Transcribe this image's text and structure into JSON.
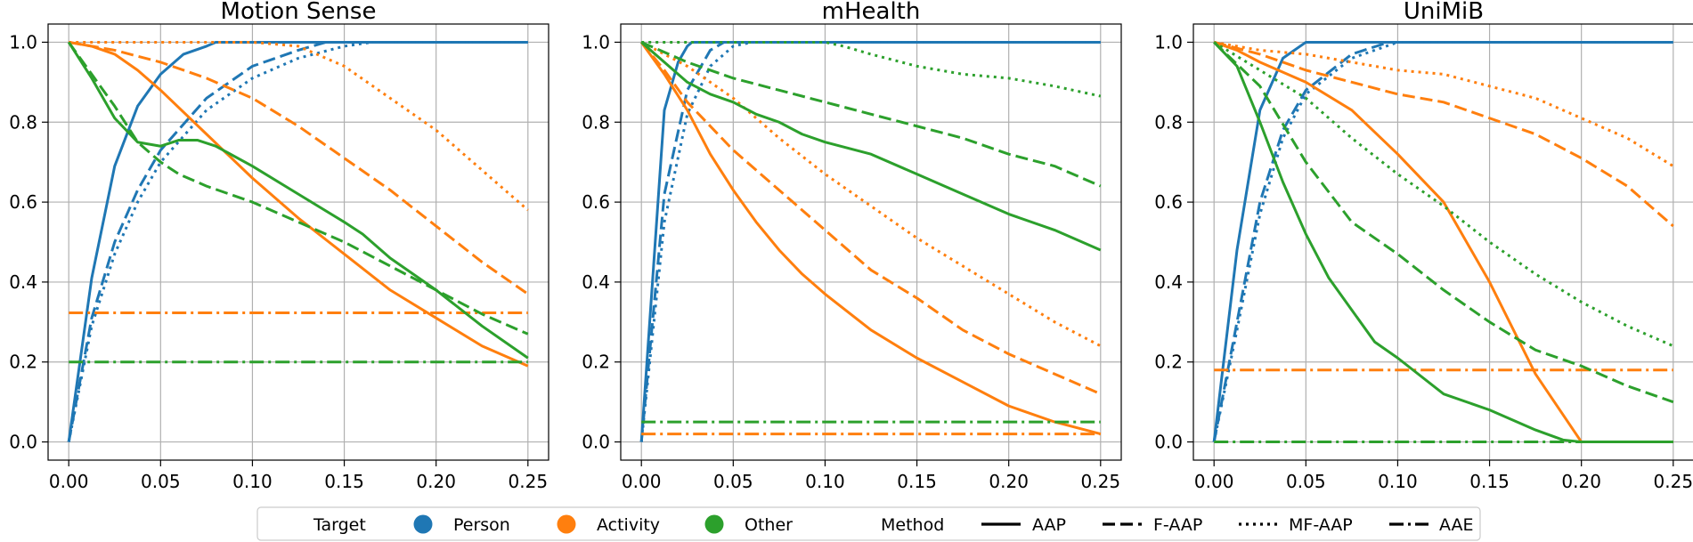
{
  "colors": {
    "person": "#1f77b4",
    "activity": "#ff7f0e",
    "other": "#2ca02c"
  },
  "chart_data": [
    {
      "type": "line",
      "title": "Motion Sense",
      "xlim": [
        0.0,
        0.25
      ],
      "ylim": [
        0.0,
        1.0
      ],
      "xticks": [
        "0.00",
        "0.05",
        "0.10",
        "0.15",
        "0.20",
        "0.25"
      ],
      "yticks": [
        "0.0",
        "0.2",
        "0.4",
        "0.6",
        "0.8",
        "1.0"
      ],
      "grid": true,
      "series": [
        {
          "target": "person",
          "method": "AAP",
          "x": [
            0,
            0.0125,
            0.025,
            0.0375,
            0.05,
            0.0625,
            0.075,
            0.08,
            0.25
          ],
          "y": [
            0,
            0.41,
            0.69,
            0.84,
            0.92,
            0.97,
            0.99,
            1.0,
            1.0
          ]
        },
        {
          "target": "person",
          "method": "F-AAP",
          "x": [
            0,
            0.0125,
            0.025,
            0.0375,
            0.05,
            0.075,
            0.1,
            0.125,
            0.14,
            0.25
          ],
          "y": [
            0,
            0.31,
            0.5,
            0.63,
            0.73,
            0.86,
            0.94,
            0.98,
            1.0,
            1.0
          ]
        },
        {
          "target": "person",
          "method": "MF-AAP",
          "x": [
            0,
            0.0125,
            0.025,
            0.0375,
            0.05,
            0.075,
            0.1,
            0.125,
            0.15,
            0.165,
            0.25
          ],
          "y": [
            0,
            0.29,
            0.47,
            0.6,
            0.7,
            0.83,
            0.91,
            0.96,
            0.99,
            1.0,
            1.0
          ]
        },
        {
          "target": "activity",
          "method": "AAP",
          "x": [
            0,
            0.0125,
            0.025,
            0.0375,
            0.05,
            0.075,
            0.1,
            0.125,
            0.15,
            0.175,
            0.2,
            0.225,
            0.25
          ],
          "y": [
            1.0,
            0.99,
            0.97,
            0.93,
            0.88,
            0.77,
            0.66,
            0.56,
            0.47,
            0.38,
            0.31,
            0.24,
            0.19
          ]
        },
        {
          "target": "activity",
          "method": "F-AAP",
          "x": [
            0,
            0.025,
            0.05,
            0.075,
            0.1,
            0.125,
            0.15,
            0.175,
            0.2,
            0.225,
            0.25
          ],
          "y": [
            1.0,
            0.98,
            0.95,
            0.91,
            0.86,
            0.79,
            0.71,
            0.63,
            0.54,
            0.45,
            0.37
          ]
        },
        {
          "target": "activity",
          "method": "MF-AAP",
          "x": [
            0,
            0.05,
            0.1,
            0.125,
            0.15,
            0.175,
            0.2,
            0.225,
            0.25
          ],
          "y": [
            1.0,
            1.0,
            1.0,
            0.99,
            0.94,
            0.86,
            0.78,
            0.68,
            0.58
          ]
        },
        {
          "target": "activity",
          "method": "AAE",
          "x": [
            0,
            0.25
          ],
          "y": [
            0.323,
            0.323
          ]
        },
        {
          "target": "other",
          "method": "AAP",
          "x": [
            0,
            0.0125,
            0.025,
            0.0375,
            0.05,
            0.06,
            0.07,
            0.08,
            0.1,
            0.125,
            0.15,
            0.16,
            0.175,
            0.2,
            0.225,
            0.25
          ],
          "y": [
            1.0,
            0.91,
            0.81,
            0.75,
            0.74,
            0.755,
            0.755,
            0.74,
            0.69,
            0.62,
            0.55,
            0.52,
            0.46,
            0.38,
            0.29,
            0.21
          ]
        },
        {
          "target": "other",
          "method": "F-AAP",
          "x": [
            0,
            0.0125,
            0.025,
            0.0375,
            0.05,
            0.06,
            0.075,
            0.1,
            0.125,
            0.15,
            0.175,
            0.2,
            0.225,
            0.25
          ],
          "y": [
            1.0,
            0.92,
            0.84,
            0.75,
            0.7,
            0.67,
            0.64,
            0.6,
            0.55,
            0.5,
            0.44,
            0.38,
            0.32,
            0.27
          ]
        },
        {
          "target": "other",
          "method": "AAE",
          "x": [
            0,
            0.25
          ],
          "y": [
            0.2,
            0.2
          ]
        }
      ]
    },
    {
      "type": "line",
      "title": "mHealth",
      "xlim": [
        0.0,
        0.25
      ],
      "ylim": [
        0.0,
        1.0
      ],
      "xticks": [
        "0.00",
        "0.05",
        "0.10",
        "0.15",
        "0.20",
        "0.25"
      ],
      "yticks": [
        "0.0",
        "0.2",
        "0.4",
        "0.6",
        "0.8",
        "1.0"
      ],
      "grid": true,
      "series": [
        {
          "target": "person",
          "method": "AAP",
          "x": [
            0,
            0.0125,
            0.02,
            0.025,
            0.0275,
            0.25
          ],
          "y": [
            0,
            0.83,
            0.95,
            0.99,
            1.0,
            1.0
          ]
        },
        {
          "target": "person",
          "method": "F-AAP",
          "x": [
            0,
            0.0125,
            0.025,
            0.0375,
            0.045,
            0.25
          ],
          "y": [
            0,
            0.62,
            0.88,
            0.98,
            1.0,
            1.0
          ]
        },
        {
          "target": "person",
          "method": "MF-AAP",
          "x": [
            0,
            0.0125,
            0.025,
            0.0375,
            0.05,
            0.06,
            0.25
          ],
          "y": [
            0,
            0.55,
            0.82,
            0.94,
            0.99,
            1.0,
            1.0
          ]
        },
        {
          "target": "activity",
          "method": "AAP",
          "x": [
            0,
            0.0125,
            0.025,
            0.0375,
            0.05,
            0.0625,
            0.075,
            0.0875,
            0.1,
            0.125,
            0.15,
            0.175,
            0.2,
            0.225,
            0.25
          ],
          "y": [
            1.0,
            0.92,
            0.83,
            0.72,
            0.63,
            0.55,
            0.48,
            0.42,
            0.37,
            0.28,
            0.21,
            0.15,
            0.09,
            0.05,
            0.02
          ]
        },
        {
          "target": "activity",
          "method": "F-AAP",
          "x": [
            0,
            0.0125,
            0.025,
            0.05,
            0.075,
            0.1,
            0.125,
            0.15,
            0.175,
            0.2,
            0.225,
            0.25
          ],
          "y": [
            1.0,
            0.93,
            0.85,
            0.73,
            0.63,
            0.53,
            0.43,
            0.36,
            0.28,
            0.22,
            0.17,
            0.12
          ]
        },
        {
          "target": "activity",
          "method": "MF-AAP",
          "x": [
            0,
            0.025,
            0.05,
            0.075,
            0.1,
            0.125,
            0.15,
            0.175,
            0.2,
            0.225,
            0.25
          ],
          "y": [
            1.0,
            0.94,
            0.86,
            0.76,
            0.67,
            0.59,
            0.51,
            0.44,
            0.37,
            0.3,
            0.24
          ]
        },
        {
          "target": "activity",
          "method": "AAE",
          "x": [
            0,
            0.25
          ],
          "y": [
            0.02,
            0.02
          ]
        },
        {
          "target": "other",
          "method": "AAP",
          "x": [
            0,
            0.0125,
            0.025,
            0.0375,
            0.05,
            0.0625,
            0.075,
            0.0875,
            0.1,
            0.125,
            0.15,
            0.175,
            0.2,
            0.225,
            0.25
          ],
          "y": [
            1.0,
            0.95,
            0.9,
            0.87,
            0.85,
            0.82,
            0.8,
            0.77,
            0.75,
            0.72,
            0.67,
            0.62,
            0.57,
            0.53,
            0.48
          ]
        },
        {
          "target": "other",
          "method": "F-AAP",
          "x": [
            0,
            0.025,
            0.05,
            0.075,
            0.1,
            0.125,
            0.15,
            0.175,
            0.2,
            0.225,
            0.25
          ],
          "y": [
            1.0,
            0.95,
            0.91,
            0.88,
            0.85,
            0.82,
            0.79,
            0.76,
            0.72,
            0.69,
            0.64
          ]
        },
        {
          "target": "other",
          "method": "MF-AAP",
          "x": [
            0,
            0.05,
            0.1,
            0.11,
            0.125,
            0.15,
            0.175,
            0.2,
            0.225,
            0.25
          ],
          "y": [
            1.0,
            1.0,
            1.0,
            0.99,
            0.97,
            0.94,
            0.92,
            0.91,
            0.89,
            0.865
          ]
        },
        {
          "target": "other",
          "method": "AAE",
          "x": [
            0,
            0.25
          ],
          "y": [
            0.05,
            0.05
          ]
        }
      ]
    },
    {
      "type": "line",
      "title": "UniMiB",
      "xlim": [
        0.0,
        0.25
      ],
      "ylim": [
        0.0,
        1.0
      ],
      "xticks": [
        "0.00",
        "0.05",
        "0.10",
        "0.15",
        "0.20",
        "0.25"
      ],
      "yticks": [
        "0.0",
        "0.2",
        "0.4",
        "0.6",
        "0.8",
        "1.0"
      ],
      "grid": true,
      "series": [
        {
          "target": "person",
          "method": "AAP",
          "x": [
            0,
            0.0125,
            0.025,
            0.0375,
            0.05,
            0.25
          ],
          "y": [
            0,
            0.48,
            0.83,
            0.96,
            1.0,
            1.0
          ]
        },
        {
          "target": "person",
          "method": "F-AAP",
          "x": [
            0,
            0.0125,
            0.025,
            0.0375,
            0.05,
            0.075,
            0.095,
            0.25
          ],
          "y": [
            0,
            0.3,
            0.6,
            0.78,
            0.88,
            0.97,
            1.0,
            1.0
          ]
        },
        {
          "target": "person",
          "method": "MF-AAP",
          "x": [
            0,
            0.0125,
            0.025,
            0.0375,
            0.05,
            0.075,
            0.1,
            0.25
          ],
          "y": [
            0,
            0.28,
            0.57,
            0.76,
            0.87,
            0.96,
            1.0,
            1.0
          ]
        },
        {
          "target": "activity",
          "method": "AAP",
          "x": [
            0,
            0.0125,
            0.025,
            0.05,
            0.075,
            0.1,
            0.125,
            0.15,
            0.175,
            0.2,
            0.25
          ],
          "y": [
            1.0,
            0.98,
            0.95,
            0.9,
            0.83,
            0.72,
            0.6,
            0.4,
            0.17,
            0.0,
            0.0
          ]
        },
        {
          "target": "activity",
          "method": "F-AAP",
          "x": [
            0,
            0.025,
            0.05,
            0.075,
            0.1,
            0.125,
            0.15,
            0.175,
            0.2,
            0.225,
            0.25
          ],
          "y": [
            1.0,
            0.97,
            0.93,
            0.9,
            0.87,
            0.85,
            0.81,
            0.77,
            0.71,
            0.64,
            0.54
          ]
        },
        {
          "target": "activity",
          "method": "MF-AAP",
          "x": [
            0,
            0.025,
            0.05,
            0.075,
            0.1,
            0.125,
            0.15,
            0.175,
            0.2,
            0.225,
            0.25
          ],
          "y": [
            1.0,
            0.98,
            0.97,
            0.95,
            0.93,
            0.92,
            0.89,
            0.86,
            0.81,
            0.76,
            0.69
          ]
        },
        {
          "target": "activity",
          "method": "AAE",
          "x": [
            0,
            0.25
          ],
          "y": [
            0.18,
            0.18
          ]
        },
        {
          "target": "other",
          "method": "AAP",
          "x": [
            0,
            0.0125,
            0.025,
            0.0375,
            0.05,
            0.0625,
            0.075,
            0.0875,
            0.1,
            0.125,
            0.15,
            0.175,
            0.19,
            0.2,
            0.25
          ],
          "y": [
            1.0,
            0.94,
            0.8,
            0.65,
            0.52,
            0.41,
            0.33,
            0.25,
            0.21,
            0.12,
            0.08,
            0.03,
            0.005,
            0.0,
            0.0
          ]
        },
        {
          "target": "other",
          "method": "F-AAP",
          "x": [
            0,
            0.025,
            0.05,
            0.075,
            0.1,
            0.125,
            0.15,
            0.175,
            0.2,
            0.225,
            0.25
          ],
          "y": [
            1.0,
            0.89,
            0.7,
            0.55,
            0.47,
            0.38,
            0.3,
            0.23,
            0.19,
            0.14,
            0.1
          ]
        },
        {
          "target": "other",
          "method": "MF-AAP",
          "x": [
            0,
            0.025,
            0.05,
            0.075,
            0.1,
            0.125,
            0.15,
            0.175,
            0.2,
            0.225,
            0.25
          ],
          "y": [
            1.0,
            0.93,
            0.86,
            0.76,
            0.67,
            0.59,
            0.5,
            0.42,
            0.35,
            0.29,
            0.24
          ]
        },
        {
          "target": "other",
          "method": "AAE",
          "x": [
            0,
            0.25
          ],
          "y": [
            0.0,
            0.0
          ]
        }
      ]
    }
  ],
  "legend": {
    "placement": "bottom-center",
    "target_title": "Target",
    "targets": [
      {
        "key": "person",
        "label": "Person"
      },
      {
        "key": "activity",
        "label": "Activity"
      },
      {
        "key": "other",
        "label": "Other"
      }
    ],
    "method_title": "Method",
    "methods": [
      {
        "key": "AAP",
        "label": "AAP"
      },
      {
        "key": "F-AAP",
        "label": "F-AAP"
      },
      {
        "key": "MF-AAP",
        "label": "MF-AAP"
      },
      {
        "key": "AAE",
        "label": "AAE"
      }
    ]
  }
}
